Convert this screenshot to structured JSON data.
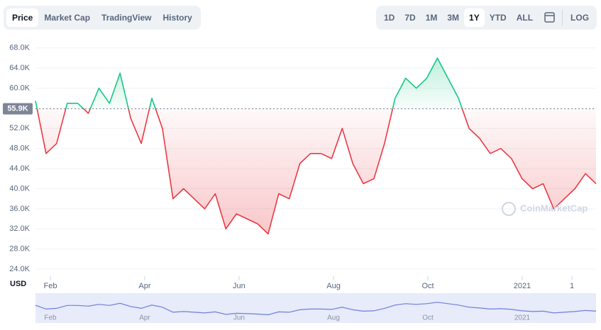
{
  "controls": {
    "tabs": [
      "Price",
      "Market Cap",
      "TradingView",
      "History"
    ],
    "ranges": [
      "1D",
      "7D",
      "1M",
      "3M",
      "1Y",
      "YTD",
      "ALL"
    ],
    "log": "LOG"
  },
  "chart_data": {
    "type": "line",
    "currency": "USD",
    "watermark": "CoinMarketCap",
    "values": [
      57.5,
      47,
      49,
      57,
      57,
      55,
      60,
      57,
      63,
      54,
      49,
      58,
      52,
      38,
      40,
      38,
      36,
      39,
      32,
      35,
      34,
      33,
      31,
      39,
      38,
      45,
      47,
      47,
      46,
      52,
      45,
      41,
      42,
      49,
      58,
      62,
      60,
      62,
      66,
      62,
      58,
      52,
      50,
      47,
      48,
      46,
      42,
      40,
      41,
      36,
      38,
      40,
      43,
      41
    ],
    "xlim": [
      0,
      53
    ],
    "xticks": [
      {
        "value": 1.41,
        "label": "Feb"
      },
      {
        "value": 10.33,
        "label": "Apr"
      },
      {
        "value": 19.25,
        "label": "Jun"
      },
      {
        "value": 28.18,
        "label": "Aug"
      },
      {
        "value": 37.1,
        "label": "Oct"
      },
      {
        "value": 46.02,
        "label": "2021"
      },
      {
        "value": 50.72,
        "label": "1"
      }
    ],
    "ylim": [
      24,
      69.1
    ],
    "yticks": [
      {
        "value": 24,
        "label": "24.0K"
      },
      {
        "value": 28,
        "label": "28.0K"
      },
      {
        "value": 32,
        "label": "32.0K"
      },
      {
        "value": 36,
        "label": "36.0K"
      },
      {
        "value": 40,
        "label": "40.0K"
      },
      {
        "value": 44,
        "label": "44.0K"
      },
      {
        "value": 48,
        "label": "48.0K"
      },
      {
        "value": 52,
        "label": "52.0K"
      },
      {
        "value": 56,
        "label": "56.0K"
      },
      {
        "value": 60,
        "label": "60.0K"
      },
      {
        "value": 64,
        "label": "64.0K"
      },
      {
        "value": 68,
        "label": "68.0K"
      }
    ],
    "baseline": {
      "value": 55.9,
      "label": "55.9K"
    },
    "up_color": "#16c784",
    "down_color": "#ea3943",
    "grid": true
  }
}
